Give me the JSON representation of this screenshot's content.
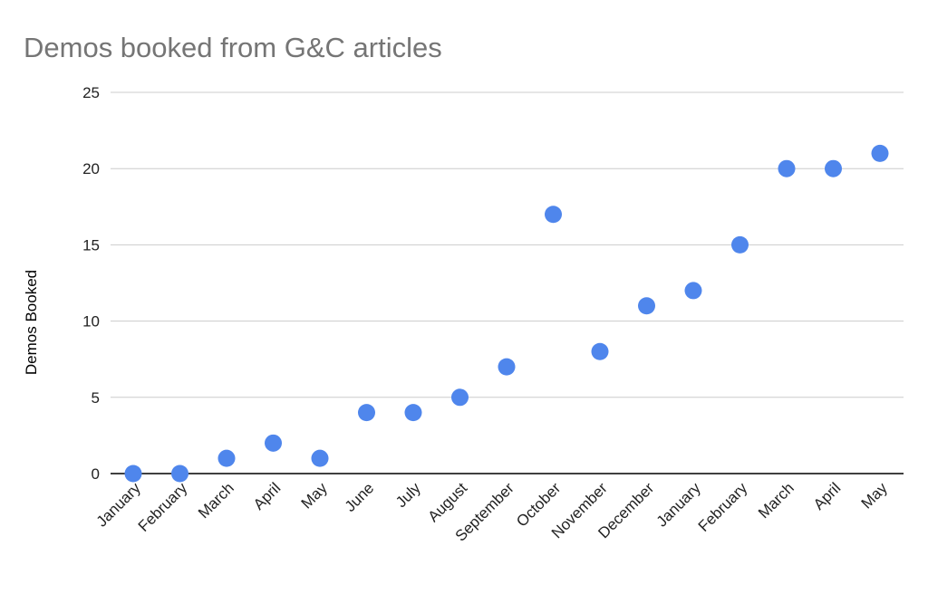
{
  "chart_data": {
    "type": "scatter",
    "title": "Demos booked from G&C articles",
    "xlabel": "",
    "ylabel": "Demos Booked",
    "categories": [
      "January",
      "February",
      "March",
      "April",
      "May",
      "June",
      "July",
      "August",
      "September",
      "October",
      "November",
      "December",
      "January",
      "February",
      "March",
      "April",
      "May"
    ],
    "series": [
      {
        "values": [
          0,
          0,
          1,
          2,
          1,
          4,
          4,
          5,
          7,
          17,
          8,
          11,
          12,
          15,
          20,
          20,
          21
        ],
        "color": "#4F86EC"
      }
    ],
    "ylim": [
      0,
      25
    ],
    "yticks": [
      0,
      5,
      10,
      15,
      20,
      25
    ],
    "grid": true,
    "legend": "none"
  },
  "colors": {
    "gridline": "#cccccc",
    "axis": "#000000",
    "point": "#4F86EC"
  }
}
